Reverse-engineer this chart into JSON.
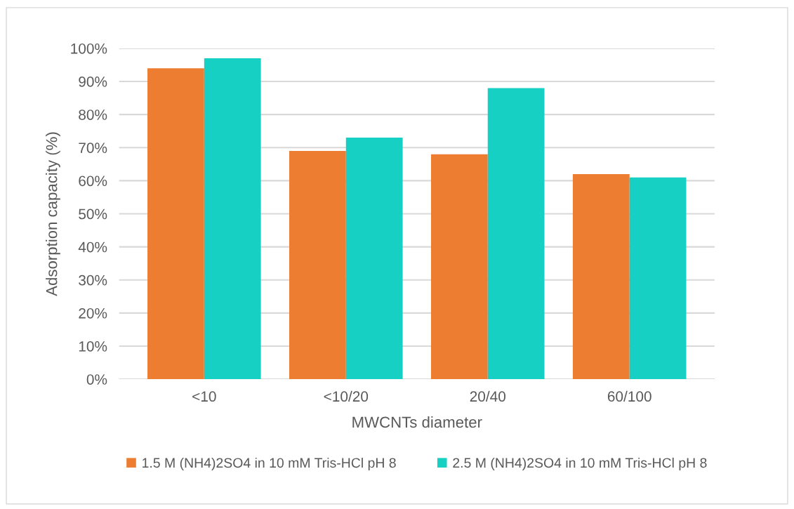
{
  "chart_data": {
    "type": "bar",
    "xlabel": "MWCNTs diameter",
    "ylabel": "Adsorption capacity (%)",
    "categories": [
      "<10",
      "<10/20",
      "20/40",
      "60/100"
    ],
    "series": [
      {
        "name": "1.5 M (NH4)2SO4 in 10 mM Tris-HCl pH 8",
        "color": "#ed7d31",
        "values": [
          94,
          69,
          68,
          62
        ]
      },
      {
        "name": "2.5 M (NH4)2SO4 in 10 mM Tris-HCl pH 8",
        "color": "#17d0c4",
        "values": [
          97,
          73,
          88,
          61
        ]
      }
    ],
    "ylim": [
      0,
      100
    ],
    "yticks": [
      {
        "value": 0,
        "label": "0%"
      },
      {
        "value": 10,
        "label": "10%"
      },
      {
        "value": 20,
        "label": "20%"
      },
      {
        "value": 30,
        "label": "30%"
      },
      {
        "value": 40,
        "label": "40%"
      },
      {
        "value": 50,
        "label": "50%"
      },
      {
        "value": 60,
        "label": "60%"
      },
      {
        "value": 70,
        "label": "70%"
      },
      {
        "value": 80,
        "label": "80%"
      },
      {
        "value": 90,
        "label": "90%"
      },
      {
        "value": 100,
        "label": "100%"
      }
    ],
    "grid": "y",
    "legend": "bottom"
  }
}
